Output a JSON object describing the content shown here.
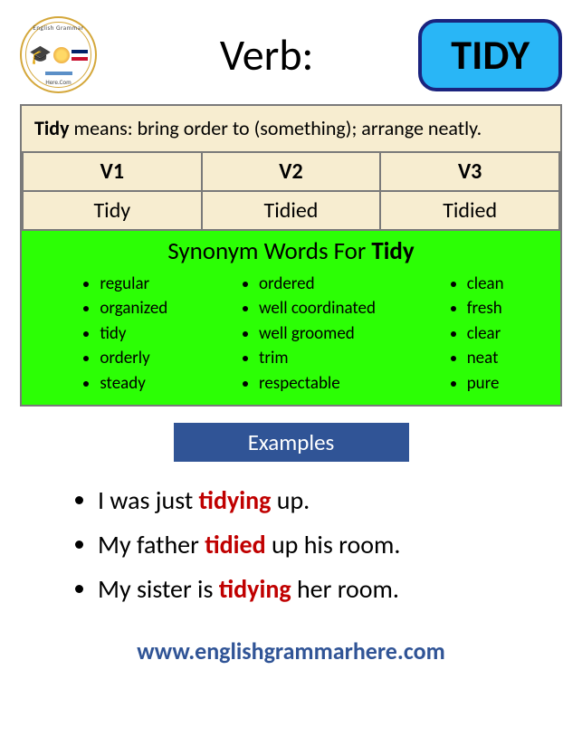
{
  "header": {
    "label": "Verb:",
    "word": "TIDY",
    "logo": {
      "top_text": "English Grammar",
      "bottom_text": "Here.Com"
    },
    "box_bg": "#29b6f6",
    "box_border": "#1a237e"
  },
  "definition": {
    "lead": "Tidy",
    "lead_suffix": " means:  bring order to (something); arrange neatly.",
    "bg_color": "#f7edd0",
    "forms": {
      "headers": [
        "V1",
        "V2",
        "V3"
      ],
      "values": [
        "Tidy",
        "Tidied",
        "Tidied"
      ]
    }
  },
  "synonyms": {
    "title_prefix": "Synonym Words For ",
    "title_word": "Tidy",
    "bg_color": "#2cff05",
    "columns": [
      [
        "regular",
        "organized",
        "tidy",
        "orderly",
        "steady"
      ],
      [
        "ordered",
        "well coordinated",
        "well groomed",
        "trim",
        "respectable"
      ],
      [
        "clean",
        "fresh",
        "clear",
        "neat",
        "pure"
      ]
    ]
  },
  "examples": {
    "header": "Examples",
    "header_bg": "#305496",
    "items": [
      {
        "pre": "I was just ",
        "hl": "tidying",
        "post": " up."
      },
      {
        "pre": "My father ",
        "hl": "tidied",
        "post": " up his room."
      },
      {
        "pre": "My sister is ",
        "hl": "tidying",
        "post": " her room."
      }
    ],
    "hl_color": "#c00000"
  },
  "footer": {
    "url": "www.englishgrammarhere.com",
    "color": "#305496"
  }
}
